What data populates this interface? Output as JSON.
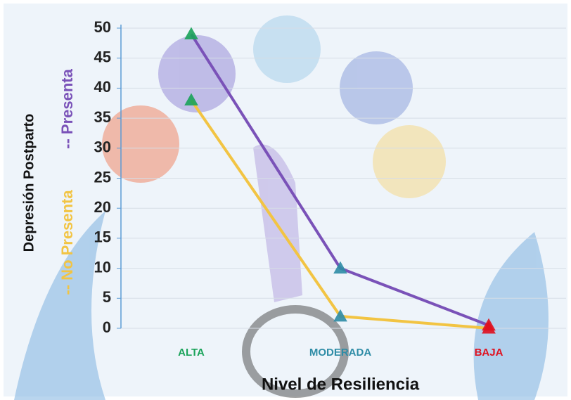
{
  "chart_data": {
    "type": "line",
    "x_label": "Nivel de Resiliencia",
    "y_label": "Depresión Postparto",
    "categories": [
      "ALTA",
      "MODERADA",
      "BAJA"
    ],
    "category_colors": [
      "#1aa35a",
      "#2e8ca6",
      "#e0101e"
    ],
    "series": [
      {
        "name": "-- Presenta",
        "color": "#7a52b8",
        "values": [
          49,
          10,
          0.5
        ]
      },
      {
        "name": "-- No Presenta",
        "color": "#f2c443",
        "values": [
          38,
          2,
          0
        ]
      }
    ],
    "ylim": [
      0,
      50
    ],
    "yticks": [
      0,
      5,
      10,
      15,
      20,
      25,
      30,
      35,
      40,
      45,
      50
    ],
    "grid": true
  }
}
